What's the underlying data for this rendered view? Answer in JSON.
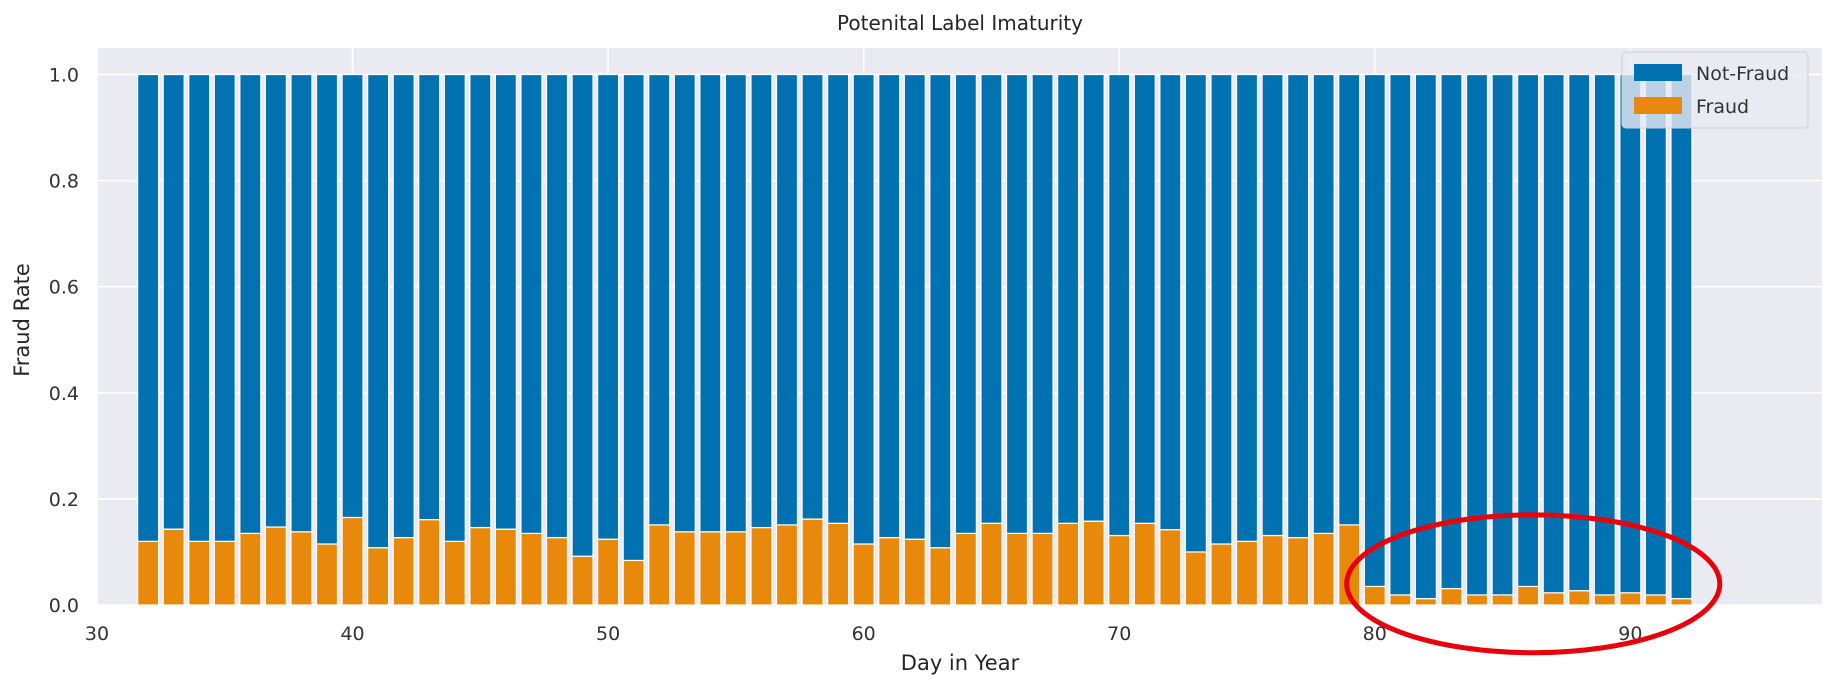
{
  "chart_data": {
    "type": "bar",
    "stacked": true,
    "title": "Potenital Label Imaturity",
    "xlabel": "Day in Year",
    "ylabel": "Fraud Rate",
    "xlim": [
      30,
      97.5
    ],
    "ylim": [
      0,
      1.05
    ],
    "xticks": [
      "30",
      "40",
      "50",
      "60",
      "70",
      "80",
      "90"
    ],
    "yticks": [
      "0.0",
      "0.2",
      "0.4",
      "0.6",
      "0.8",
      "1.0"
    ],
    "grid": true,
    "legend": "top-right",
    "x": [
      32,
      33,
      34,
      35,
      36,
      37,
      38,
      39,
      40,
      41,
      42,
      43,
      44,
      45,
      46,
      47,
      48,
      49,
      50,
      51,
      52,
      53,
      54,
      55,
      56,
      57,
      58,
      59,
      60,
      61,
      62,
      63,
      64,
      65,
      66,
      67,
      68,
      69,
      70,
      71,
      72,
      73,
      74,
      75,
      76,
      77,
      78,
      79,
      80,
      81,
      82,
      83,
      84,
      85,
      86,
      87,
      88,
      89,
      90,
      91,
      92
    ],
    "series": [
      {
        "name": "Fraud",
        "color": "#E8890C",
        "values": [
          0.12,
          0.143,
          0.12,
          0.12,
          0.135,
          0.147,
          0.138,
          0.115,
          0.165,
          0.108,
          0.127,
          0.161,
          0.12,
          0.146,
          0.143,
          0.135,
          0.127,
          0.092,
          0.124,
          0.084,
          0.151,
          0.138,
          0.138,
          0.138,
          0.146,
          0.151,
          0.162,
          0.154,
          0.115,
          0.127,
          0.124,
          0.108,
          0.135,
          0.154,
          0.135,
          0.135,
          0.154,
          0.158,
          0.131,
          0.154,
          0.142,
          0.1,
          0.115,
          0.12,
          0.131,
          0.127,
          0.135,
          0.151,
          0.035,
          0.019,
          0.012,
          0.031,
          0.019,
          0.019,
          0.035,
          0.023,
          0.027,
          0.019,
          0.023,
          0.019,
          0.012
        ]
      },
      {
        "name": "Not-Fraud",
        "color": "#0072B2",
        "values": [
          0.88,
          0.857,
          0.88,
          0.88,
          0.865,
          0.853,
          0.862,
          0.885,
          0.835,
          0.892,
          0.873,
          0.839,
          0.88,
          0.854,
          0.857,
          0.865,
          0.873,
          0.908,
          0.876,
          0.916,
          0.849,
          0.862,
          0.862,
          0.862,
          0.854,
          0.849,
          0.838,
          0.846,
          0.885,
          0.873,
          0.876,
          0.892,
          0.865,
          0.846,
          0.865,
          0.865,
          0.846,
          0.842,
          0.869,
          0.846,
          0.858,
          0.9,
          0.885,
          0.88,
          0.869,
          0.873,
          0.865,
          0.849,
          0.965,
          0.981,
          0.988,
          0.969,
          0.981,
          0.981,
          0.965,
          0.977,
          0.973,
          0.981,
          0.977,
          0.981,
          0.988
        ]
      }
    ],
    "annotations": [
      {
        "type": "ellipse",
        "color": "#E8000B",
        "x_center": 86.2,
        "y_center": 0.04,
        "x_radius": 7.3,
        "y_radius": 0.13
      }
    ]
  }
}
